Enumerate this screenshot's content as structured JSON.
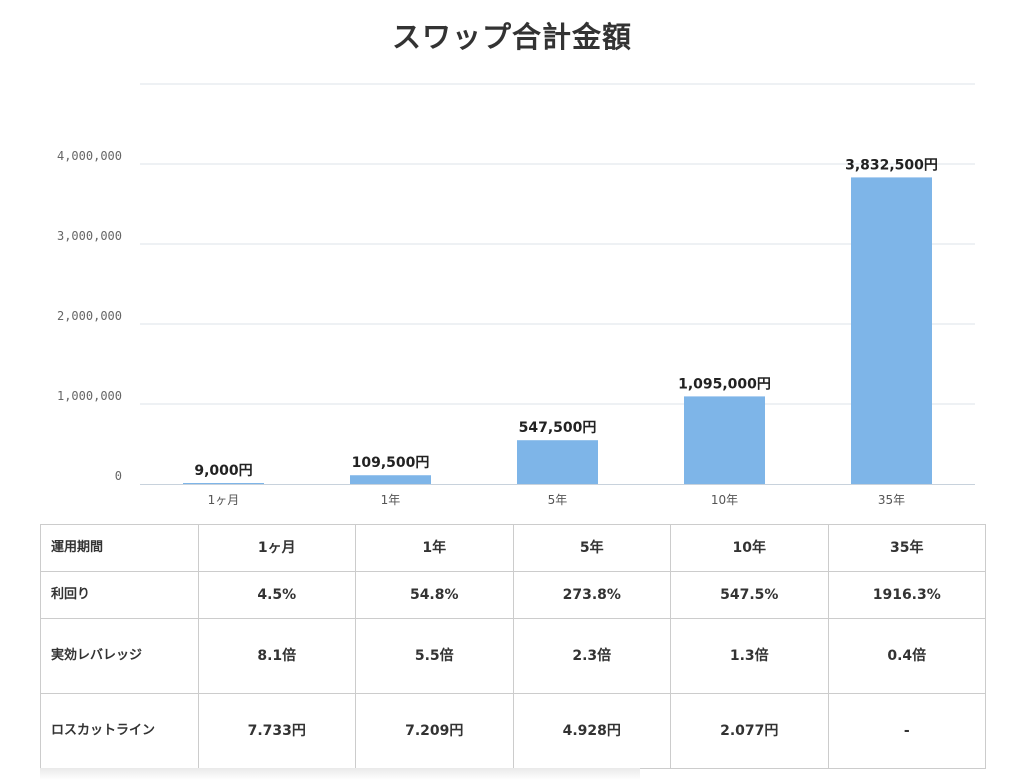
{
  "chart_data": {
    "type": "bar",
    "title": "スワップ合計金額",
    "categories": [
      "1ヶ月",
      "1年",
      "5年",
      "10年",
      "35年"
    ],
    "values": [
      9000,
      109500,
      547500,
      1095000,
      3832500
    ],
    "data_labels": [
      "9,000円",
      "109,500円",
      "547,500円",
      "1,095,000円",
      "3,832,500円"
    ],
    "yticks": [
      "0",
      "1,000,000",
      "2,000,000",
      "3,000,000",
      "4,000,000"
    ],
    "ylim": [
      0,
      5000000
    ],
    "grid": true,
    "bar_color": "#7eb5e8",
    "xlabel": "",
    "ylabel": ""
  },
  "table": {
    "header": [
      "運用期間",
      "1ヶ月",
      "1年",
      "5年",
      "10年",
      "35年"
    ],
    "rows": [
      [
        "利回り",
        "4.5%",
        "54.8%",
        "273.8%",
        "547.5%",
        "1916.3%"
      ],
      [
        "実効レバレッジ",
        "8.1倍",
        "5.5倍",
        "2.3倍",
        "1.3倍",
        "0.4倍"
      ],
      [
        "ロスカットライン",
        "7.733円",
        "7.209円",
        "4.928円",
        "2.077円",
        "-"
      ]
    ]
  }
}
